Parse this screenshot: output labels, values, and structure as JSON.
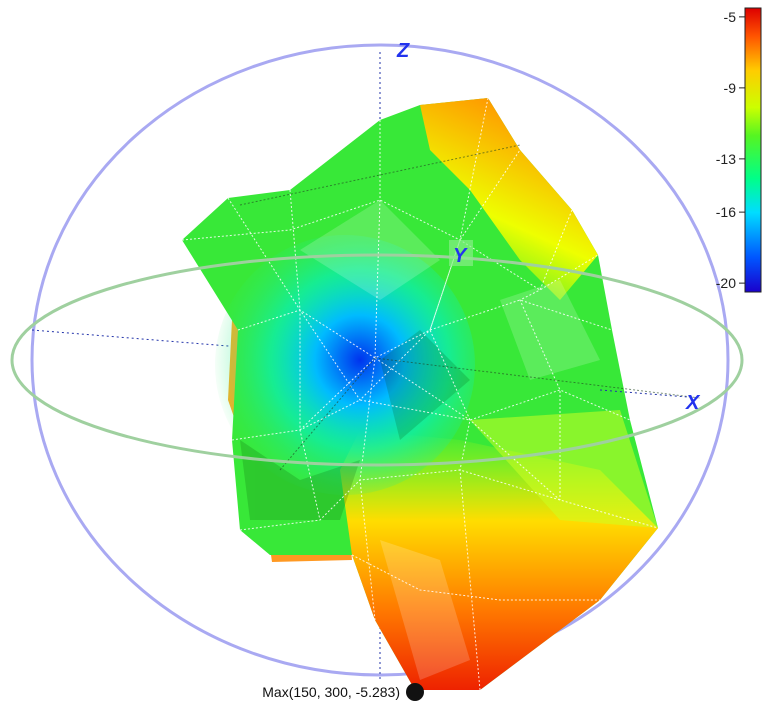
{
  "chart_data": {
    "type": "3d-surface",
    "axes": {
      "x_label": "X",
      "y_label": "Y",
      "z_label": "Z"
    },
    "colorbar": {
      "ticks": [
        -5,
        -9,
        -13,
        -16,
        -20
      ],
      "tick_labels": [
        "-5",
        "-9",
        "-13",
        "-16",
        "-20"
      ],
      "range": [
        -20.5,
        -4.5
      ],
      "colormap": [
        "#1a00cc",
        "#0055ff",
        "#00ddff",
        "#00ff88",
        "#22ee22",
        "#aaff00",
        "#ffff00",
        "#ffaa00",
        "#ff4400",
        "#e00000"
      ]
    },
    "max_marker": {
      "label": "Max(150, 300, -5.283)",
      "theta": 150,
      "phi": 300,
      "value": -5.283
    },
    "colors": {
      "sphere": "#9999ee",
      "equator": "#99cc99",
      "axis": "#2233ee"
    }
  }
}
